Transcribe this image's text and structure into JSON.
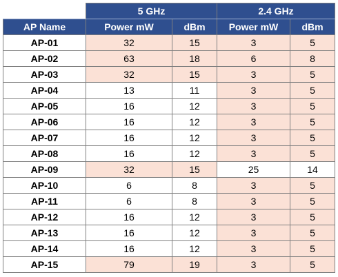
{
  "table": {
    "band_labels": {
      "ghz5": "5 GHz",
      "ghz24": "2.4 GHz"
    },
    "columns": [
      "AP Name",
      "Power mW",
      "dBm",
      "Power mW",
      "dBm"
    ],
    "rows": [
      {
        "name": "AP-01",
        "p5": "32",
        "d5": "15",
        "p24": "3",
        "d24": "5",
        "hl5": true,
        "hl24": true
      },
      {
        "name": "AP-02",
        "p5": "63",
        "d5": "18",
        "p24": "6",
        "d24": "8",
        "hl5": true,
        "hl24": true
      },
      {
        "name": "AP-03",
        "p5": "32",
        "d5": "15",
        "p24": "3",
        "d24": "5",
        "hl5": true,
        "hl24": true
      },
      {
        "name": "AP-04",
        "p5": "13",
        "d5": "11",
        "p24": "3",
        "d24": "5",
        "hl5": false,
        "hl24": true
      },
      {
        "name": "AP-05",
        "p5": "16",
        "d5": "12",
        "p24": "3",
        "d24": "5",
        "hl5": false,
        "hl24": true
      },
      {
        "name": "AP-06",
        "p5": "16",
        "d5": "12",
        "p24": "3",
        "d24": "5",
        "hl5": false,
        "hl24": true
      },
      {
        "name": "AP-07",
        "p5": "16",
        "d5": "12",
        "p24": "3",
        "d24": "5",
        "hl5": false,
        "hl24": true
      },
      {
        "name": "AP-08",
        "p5": "16",
        "d5": "12",
        "p24": "3",
        "d24": "5",
        "hl5": false,
        "hl24": true
      },
      {
        "name": "AP-09",
        "p5": "32",
        "d5": "15",
        "p24": "25",
        "d24": "14",
        "hl5": true,
        "hl24": false
      },
      {
        "name": "AP-10",
        "p5": "6",
        "d5": "8",
        "p24": "3",
        "d24": "5",
        "hl5": false,
        "hl24": true
      },
      {
        "name": "AP-11",
        "p5": "6",
        "d5": "8",
        "p24": "3",
        "d24": "5",
        "hl5": false,
        "hl24": true
      },
      {
        "name": "AP-12",
        "p5": "16",
        "d5": "12",
        "p24": "3",
        "d24": "5",
        "hl5": false,
        "hl24": true
      },
      {
        "name": "AP-13",
        "p5": "16",
        "d5": "12",
        "p24": "3",
        "d24": "5",
        "hl5": false,
        "hl24": true
      },
      {
        "name": "AP-14",
        "p5": "16",
        "d5": "12",
        "p24": "3",
        "d24": "5",
        "hl5": false,
        "hl24": true
      },
      {
        "name": "AP-15",
        "p5": "79",
        "d5": "19",
        "p24": "3",
        "d24": "5",
        "hl5": true,
        "hl24": true
      }
    ]
  },
  "colors": {
    "header_bg": "#2f4f8f",
    "header_text": "#ffffff",
    "highlight_bg": "#fbe1d6",
    "border": "#7f7f7f"
  }
}
